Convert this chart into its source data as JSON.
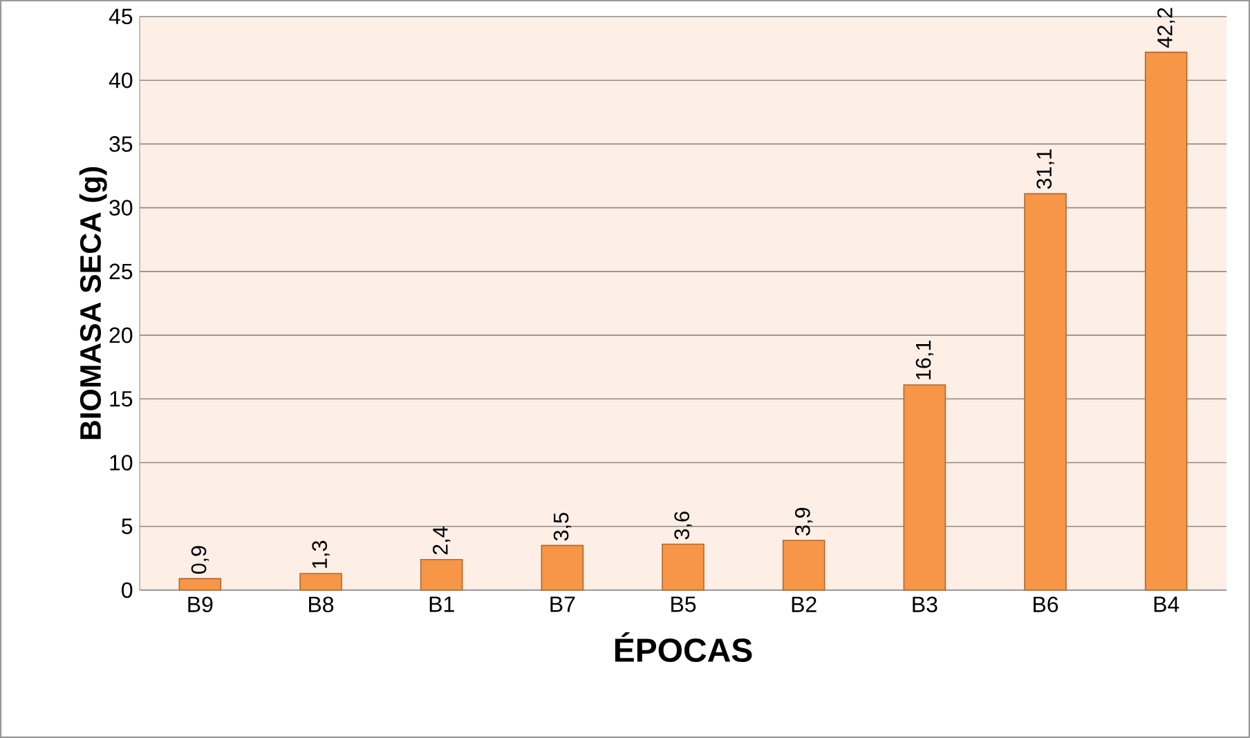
{
  "chart_data": {
    "type": "bar",
    "xlabel": "ÉPOCAS",
    "ylabel": "BIOMASA SECA (g)",
    "categories": [
      "B9",
      "B8",
      "B1",
      "B7",
      "B5",
      "B2",
      "B3",
      "B6",
      "B4"
    ],
    "values": [
      0.9,
      1.3,
      2.4,
      3.5,
      3.6,
      3.9,
      16.1,
      31.1,
      42.2
    ],
    "value_labels": [
      "0,9",
      "1,3",
      "2,4",
      "3,5",
      "3,6",
      "3,9",
      "16,1",
      "31,1",
      "42,2"
    ],
    "color": "#f79646",
    "ylim": [
      0,
      45
    ],
    "yticks": [
      0,
      5,
      10,
      15,
      20,
      25,
      30,
      35,
      40,
      45
    ],
    "grid": "y"
  }
}
